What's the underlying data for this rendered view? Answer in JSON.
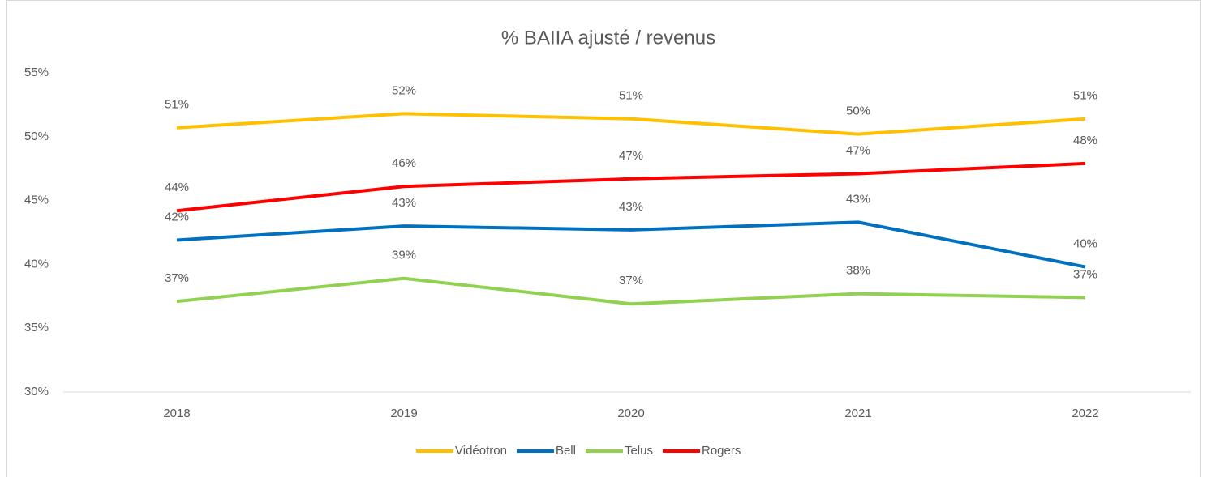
{
  "chart_data": {
    "type": "line",
    "title": "% BAIIA ajusté / revenus",
    "categories": [
      "2018",
      "2019",
      "2020",
      "2021",
      "2022"
    ],
    "series": [
      {
        "name": "Vidéotron",
        "color": "#ffc000",
        "values": [
          50.7,
          51.8,
          51.4,
          50.2,
          51.4
        ],
        "value_labels": [
          "51%",
          "52%",
          "51%",
          "50%",
          "51%"
        ]
      },
      {
        "name": "Bell",
        "color": "#0070c0",
        "values": [
          41.9,
          43.0,
          42.7,
          43.3,
          39.8
        ],
        "value_labels": [
          "42%",
          "43%",
          "43%",
          "43%",
          "40%"
        ]
      },
      {
        "name": "Telus",
        "color": "#92d050",
        "values": [
          37.1,
          38.9,
          36.9,
          37.7,
          37.4
        ],
        "value_labels": [
          "37%",
          "39%",
          "37%",
          "38%",
          "37%"
        ]
      },
      {
        "name": "Rogers",
        "color": "#ff0000",
        "values": [
          44.2,
          46.1,
          46.7,
          47.1,
          47.9
        ],
        "value_labels": [
          "44%",
          "46%",
          "47%",
          "47%",
          "48%"
        ]
      }
    ],
    "ylim": [
      30,
      55
    ],
    "yticks": [
      {
        "value": 30,
        "label": "30%"
      },
      {
        "value": 35,
        "label": "35%"
      },
      {
        "value": 40,
        "label": "40%"
      },
      {
        "value": 45,
        "label": "45%"
      },
      {
        "value": 50,
        "label": "50%"
      },
      {
        "value": 55,
        "label": "55%"
      }
    ],
    "legend": "bottom"
  }
}
